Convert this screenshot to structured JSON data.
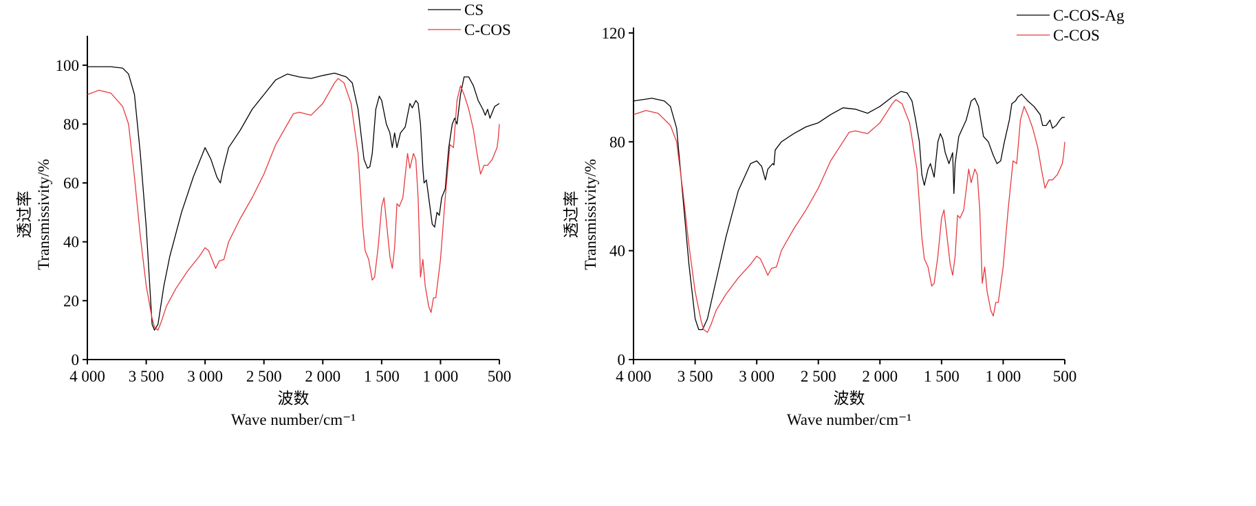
{
  "chart_data": [
    {
      "type": "line",
      "xlabel_cn": "波数",
      "xlabel": "Wave number/cm⁻¹",
      "ylabel_cn": "透过率",
      "ylabel": "Transmissivity/%",
      "xlim": [
        4000,
        500
      ],
      "ylim": [
        0,
        110
      ],
      "xticks": [
        4000,
        3500,
        3000,
        2500,
        2000,
        1500,
        1000,
        500
      ],
      "xtick_labels": [
        "4 000",
        "3 500",
        "3 000",
        "2 500",
        "2 000",
        "1 500",
        "1 000",
        "500"
      ],
      "yticks": [
        0,
        20,
        40,
        60,
        80,
        100
      ],
      "ytick_labels": [
        "0",
        "20",
        "40",
        "60",
        "80",
        "100"
      ],
      "legend_position": "top-right",
      "grid": false,
      "series": [
        {
          "name": "CS",
          "color": "#000000",
          "x": [
            4000,
            3800,
            3700,
            3650,
            3600,
            3550,
            3500,
            3450,
            3430,
            3400,
            3350,
            3300,
            3200,
            3100,
            3000,
            2950,
            2900,
            2870,
            2850,
            2800,
            2700,
            2600,
            2500,
            2400,
            2300,
            2200,
            2100,
            2000,
            1900,
            1800,
            1750,
            1700,
            1650,
            1620,
            1600,
            1580,
            1550,
            1520,
            1500,
            1460,
            1430,
            1410,
            1390,
            1370,
            1340,
            1320,
            1300,
            1260,
            1240,
            1210,
            1190,
            1170,
            1150,
            1140,
            1120,
            1100,
            1070,
            1050,
            1030,
            1010,
            990,
            960,
            930,
            900,
            880,
            860,
            830,
            800,
            760,
            720,
            680,
            640,
            620,
            600,
            580,
            560,
            540,
            500
          ],
          "y": [
            99.5,
            99.5,
            99,
            97,
            90,
            70,
            45,
            12,
            10,
            12,
            25,
            35,
            50,
            62,
            72,
            68,
            62,
            60,
            64,
            72,
            78,
            85,
            90,
            95,
            97,
            96,
            95.5,
            96.5,
            97.3,
            96,
            94,
            85,
            68,
            65,
            65.5,
            70,
            85,
            89.5,
            88,
            80,
            77,
            72,
            77,
            72,
            77,
            78,
            79,
            87,
            85.5,
            88,
            87,
            80,
            65,
            60,
            61,
            55,
            46,
            45,
            50,
            49,
            55,
            58,
            72,
            80,
            82,
            80,
            90,
            96,
            96,
            93,
            88,
            85,
            83,
            85,
            82,
            84,
            86,
            87
          ]
        },
        {
          "name": "C-COS",
          "color": "#e8383d",
          "x": [
            4000,
            3900,
            3800,
            3700,
            3650,
            3600,
            3550,
            3500,
            3450,
            3430,
            3400,
            3370,
            3330,
            3250,
            3150,
            3050,
            3000,
            2970,
            2930,
            2910,
            2880,
            2840,
            2800,
            2700,
            2600,
            2500,
            2400,
            2300,
            2250,
            2200,
            2100,
            2000,
            1900,
            1870,
            1820,
            1760,
            1700,
            1660,
            1640,
            1610,
            1580,
            1560,
            1530,
            1500,
            1480,
            1460,
            1430,
            1410,
            1390,
            1370,
            1350,
            1320,
            1280,
            1260,
            1230,
            1210,
            1190,
            1170,
            1150,
            1130,
            1100,
            1080,
            1060,
            1040,
            1000,
            960,
            920,
            890,
            860,
            830,
            800,
            760,
            720,
            690,
            660,
            630,
            600,
            560,
            520,
            510,
            500
          ],
          "y": [
            90,
            91.5,
            90.5,
            86,
            80,
            62,
            42,
            25,
            14,
            11,
            10,
            13,
            18,
            24,
            30,
            35,
            38,
            37,
            33,
            31,
            33.5,
            34,
            40,
            48,
            55,
            63,
            73,
            80,
            83.5,
            84,
            83,
            87,
            94,
            95.5,
            94,
            87,
            70,
            45,
            37,
            34,
            27,
            28,
            38,
            52,
            55,
            47,
            35,
            31,
            38,
            53,
            52,
            55,
            70,
            65,
            70,
            68,
            55,
            28,
            34,
            25,
            18,
            16,
            21,
            21,
            34,
            55,
            73,
            72,
            88,
            93,
            90,
            85,
            78,
            70,
            63,
            66,
            66,
            68,
            72,
            75,
            80
          ]
        }
      ]
    },
    {
      "type": "line",
      "xlabel_cn": "波数",
      "xlabel": "Wave number/cm⁻¹",
      "ylabel_cn": "透过率",
      "ylabel": "Transmissivity/%",
      "xlim": [
        4000,
        500
      ],
      "ylim": [
        0,
        120
      ],
      "xticks": [
        4000,
        3500,
        3000,
        2500,
        2000,
        1500,
        1000,
        500
      ],
      "xtick_labels": [
        "4 000",
        "3 500",
        "3 000",
        "2 500",
        "2 000",
        "1 500",
        "1 000",
        "500"
      ],
      "yticks": [
        0,
        40,
        80,
        120
      ],
      "ytick_labels": [
        "0",
        "40",
        "80",
        "120"
      ],
      "legend_position": "top-right",
      "grid": false,
      "series": [
        {
          "name": "C-COS-Ag",
          "color": "#000000",
          "x": [
            4000,
            3850,
            3750,
            3700,
            3650,
            3600,
            3550,
            3500,
            3470,
            3440,
            3400,
            3350,
            3250,
            3150,
            3050,
            3000,
            2960,
            2930,
            2910,
            2870,
            2860,
            2850,
            2800,
            2700,
            2600,
            2500,
            2400,
            2300,
            2200,
            2100,
            2000,
            1900,
            1830,
            1780,
            1740,
            1710,
            1680,
            1660,
            1640,
            1610,
            1590,
            1560,
            1530,
            1510,
            1490,
            1470,
            1440,
            1410,
            1400,
            1390,
            1360,
            1300,
            1260,
            1230,
            1200,
            1160,
            1120,
            1080,
            1050,
            1020,
            990,
            950,
            930,
            900,
            880,
            850,
            800,
            750,
            700,
            680,
            650,
            620,
            600,
            570,
            540,
            520,
            500
          ],
          "y": [
            95,
            96,
            95,
            93,
            85,
            60,
            35,
            15,
            11,
            11,
            15,
            25,
            45,
            62,
            72,
            73,
            71,
            66,
            70,
            72,
            71.5,
            77,
            80,
            83,
            85.5,
            87,
            90,
            92.5,
            92,
            90.5,
            93,
            96.5,
            98.5,
            98,
            95,
            88,
            80,
            68,
            64,
            70,
            72,
            67,
            80,
            83,
            81,
            76,
            72,
            76,
            61,
            72,
            82,
            88,
            95,
            96,
            93,
            82,
            80,
            75,
            72,
            73,
            80,
            88,
            94,
            95,
            96.5,
            97.5,
            95,
            93,
            90,
            86,
            86,
            88,
            85,
            86,
            88,
            89,
            89
          ]
        },
        {
          "name": "C-COS",
          "color": "#e8383d",
          "x": [
            4000,
            3900,
            3800,
            3700,
            3650,
            3600,
            3550,
            3500,
            3450,
            3430,
            3400,
            3370,
            3330,
            3250,
            3150,
            3050,
            3000,
            2970,
            2930,
            2910,
            2880,
            2840,
            2800,
            2700,
            2600,
            2500,
            2400,
            2300,
            2250,
            2200,
            2100,
            2000,
            1900,
            1870,
            1820,
            1760,
            1700,
            1660,
            1640,
            1610,
            1580,
            1560,
            1530,
            1500,
            1480,
            1460,
            1430,
            1410,
            1390,
            1370,
            1350,
            1320,
            1280,
            1260,
            1230,
            1210,
            1190,
            1170,
            1150,
            1130,
            1100,
            1080,
            1060,
            1040,
            1000,
            960,
            920,
            890,
            860,
            830,
            800,
            760,
            720,
            690,
            660,
            630,
            600,
            560,
            520,
            510,
            500
          ],
          "y": [
            90,
            91.5,
            90.5,
            86,
            80,
            62,
            42,
            25,
            14,
            11,
            10,
            13,
            18,
            24,
            30,
            35,
            38,
            37,
            33,
            31,
            33.5,
            34,
            40,
            48,
            55,
            63,
            73,
            80,
            83.5,
            84,
            83,
            87,
            94,
            95.5,
            94,
            87,
            70,
            45,
            37,
            34,
            27,
            28,
            38,
            52,
            55,
            47,
            35,
            31,
            38,
            53,
            52,
            55,
            70,
            65,
            70,
            68,
            55,
            28,
            34,
            25,
            18,
            16,
            21,
            21,
            34,
            55,
            73,
            72,
            88,
            93,
            90,
            85,
            78,
            70,
            63,
            66,
            66,
            68,
            72,
            75,
            80
          ]
        }
      ]
    }
  ]
}
